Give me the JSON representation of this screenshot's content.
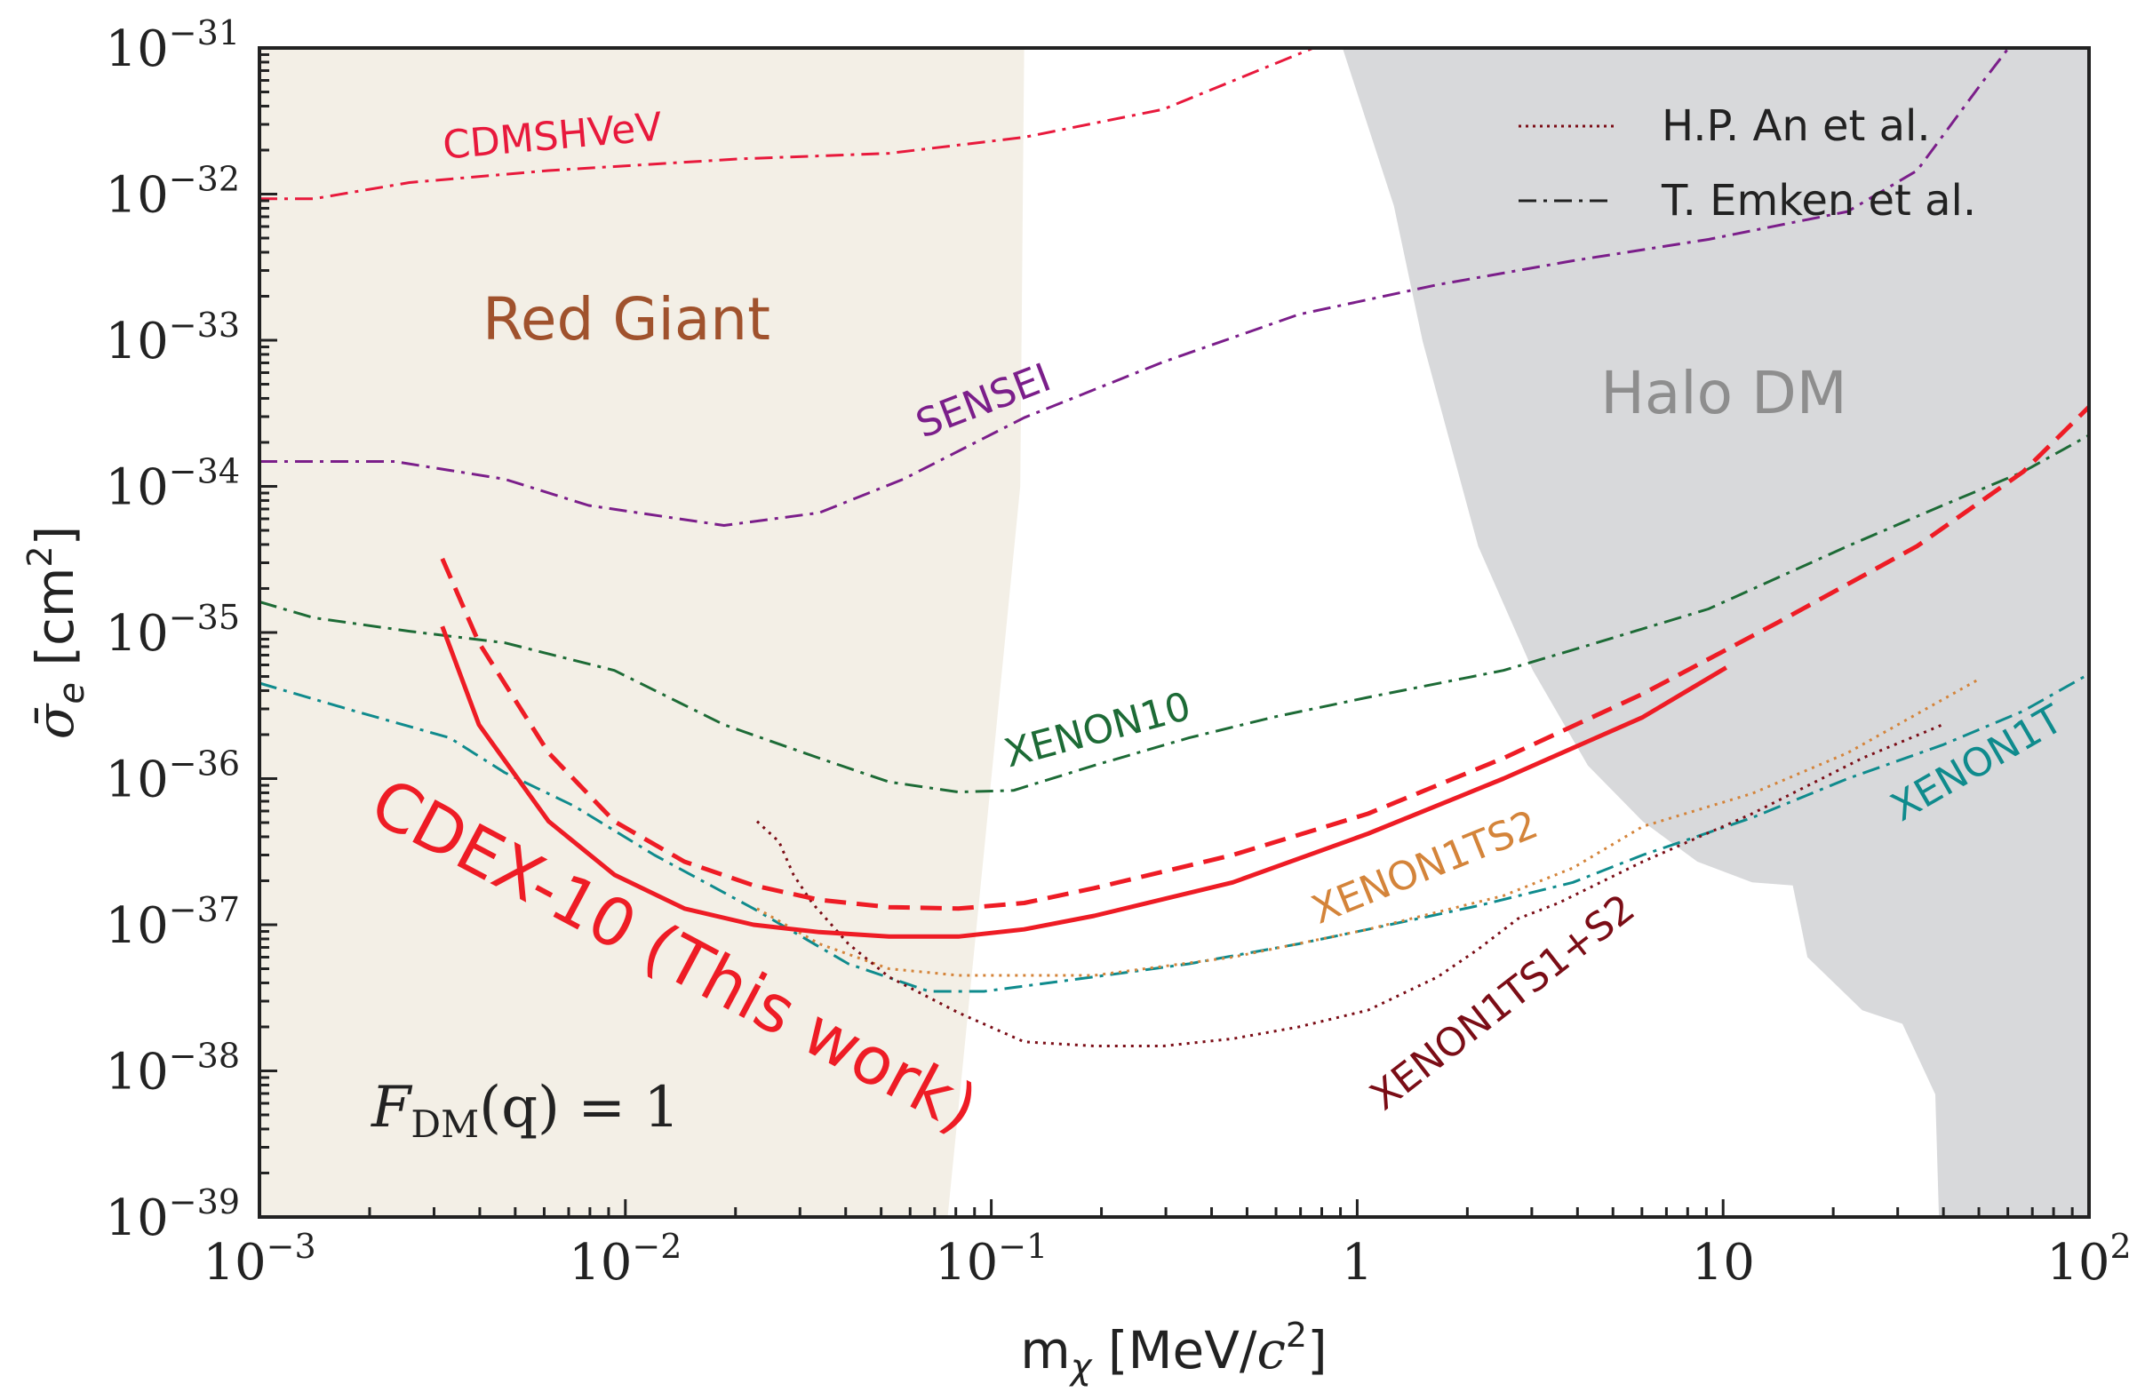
{
  "chart_data": {
    "type": "line",
    "xlabel": "m_χ [MeV/c²]",
    "xlabel_parts": {
      "main": "m",
      "sub": "χ",
      "unit": " [MeV/",
      "c": "c",
      "sup": "2",
      "close": "]"
    },
    "ylabel": "σ̄_e [cm²]",
    "ylabel_parts": {
      "main": "σ̄",
      "sub": "e",
      "unit": " [cm",
      "sup": "2",
      "close": "]"
    },
    "x_scale": "log",
    "y_scale": "log",
    "xlim": [
      0.001,
      100
    ],
    "ylim": [
      1e-39,
      1e-31
    ],
    "grid": false,
    "x_ticks": [
      {
        "value": 0.001,
        "base": "10",
        "exp": "−3"
      },
      {
        "value": 0.01,
        "base": "10",
        "exp": "−2"
      },
      {
        "value": 0.1,
        "base": "10",
        "exp": "−1"
      },
      {
        "value": 1,
        "base": "1",
        "exp": ""
      },
      {
        "value": 10,
        "base": "10",
        "exp": ""
      },
      {
        "value": 100,
        "base": "10",
        "exp": "2"
      }
    ],
    "y_ticks": [
      {
        "value": 1e-31,
        "base": "10",
        "exp": "−31"
      },
      {
        "value": 1e-32,
        "base": "10",
        "exp": "−32"
      },
      {
        "value": 1e-33,
        "base": "10",
        "exp": "−33"
      },
      {
        "value": 1e-34,
        "base": "10",
        "exp": "−34"
      },
      {
        "value": 1e-35,
        "base": "10",
        "exp": "−35"
      },
      {
        "value": 1e-36,
        "base": "10",
        "exp": "−36"
      },
      {
        "value": 1e-37,
        "base": "10",
        "exp": "−37"
      },
      {
        "value": 1e-38,
        "base": "10",
        "exp": "−38"
      },
      {
        "value": 1e-39,
        "base": "10",
        "exp": "−39"
      }
    ],
    "regions": [
      {
        "name": "Red Giant",
        "color": "#f3efe6",
        "label_color": "#a0522d",
        "boundary": [
          [
            0.001,
            1e-31
          ],
          [
            0.123,
            1e-31
          ],
          [
            0.12,
            1e-34
          ],
          [
            0.1,
            1e-36
          ],
          [
            0.076,
            1e-39
          ],
          [
            0.001,
            1e-39
          ]
        ]
      },
      {
        "name": "Halo DM",
        "color": "#d8d9db",
        "label_color": "#8e8e8e",
        "boundary": [
          [
            0.912,
            1e-31
          ],
          [
            1.26,
            8.3e-33
          ],
          [
            1.51,
            9.8e-34
          ],
          [
            2.14,
            3.9e-35
          ],
          [
            3.02,
            5.5e-36
          ],
          [
            4.27,
            1.23e-36
          ],
          [
            6.03,
            5.1e-37
          ],
          [
            8.51,
            2.7e-37
          ],
          [
            12.0,
            1.95e-37
          ],
          [
            15.5,
            1.86e-37
          ],
          [
            17.0,
            6e-38
          ],
          [
            24.0,
            2.6e-38
          ],
          [
            30.9,
            2.1e-38
          ],
          [
            38.0,
            6.9e-39
          ],
          [
            38.9,
            1e-39
          ],
          [
            100,
            1e-39
          ],
          [
            100,
            1e-31
          ]
        ]
      }
    ],
    "series": [
      {
        "name": "CDMSHVeV",
        "color": "#e8193c",
        "style": "dashdot",
        "points": [
          [
            0.001,
            9.3e-33
          ],
          [
            0.00141,
            9.3e-33
          ],
          [
            0.00257,
            1.2e-32
          ],
          [
            0.00617,
            1.45e-32
          ],
          [
            0.0204,
            1.74e-32
          ],
          [
            0.0525,
            1.9e-32
          ],
          [
            0.123,
            2.45e-32
          ],
          [
            0.295,
            3.8e-32
          ],
          [
            0.759,
            1e-31
          ]
        ]
      },
      {
        "name": "SENSEI",
        "color": "#7b1e8a",
        "style": "dashdot",
        "points": [
          [
            0.001,
            1.48e-34
          ],
          [
            0.00234,
            1.48e-34
          ],
          [
            0.00468,
            1.12e-34
          ],
          [
            0.00794,
            7.4e-35
          ],
          [
            0.0186,
            5.4e-35
          ],
          [
            0.0339,
            6.6e-35
          ],
          [
            0.0575,
            1.12e-34
          ],
          [
            0.123,
            2.95e-34
          ],
          [
            0.295,
            7.1e-34
          ],
          [
            0.692,
            1.5e-33
          ],
          [
            1.66,
            2.4e-33
          ],
          [
            3.89,
            3.5e-33
          ],
          [
            9.12,
            4.9e-33
          ],
          [
            21.9,
            7.6e-33
          ],
          [
            33.9,
            1.45e-32
          ],
          [
            51.3,
            5.9e-32
          ],
          [
            60.3,
            1e-31
          ]
        ]
      },
      {
        "name": "XENON10",
        "color": "#1d6b36",
        "style": "dashdot",
        "points": [
          [
            0.001,
            1.62e-35
          ],
          [
            0.00141,
            1.26e-35
          ],
          [
            0.00257,
            1.02e-35
          ],
          [
            0.00468,
            8.5e-36
          ],
          [
            0.00933,
            5.5e-36
          ],
          [
            0.0186,
            2.34e-36
          ],
          [
            0.0339,
            1.38e-36
          ],
          [
            0.0525,
            9.5e-37
          ],
          [
            0.0813,
            8.1e-37
          ],
          [
            0.115,
            8.3e-37
          ],
          [
            0.191,
            1.23e-36
          ],
          [
            0.347,
            1.9e-36
          ],
          [
            0.589,
            2.63e-36
          ],
          [
            1.07,
            3.6e-36
          ],
          [
            2.51,
            5.5e-36
          ],
          [
            3.89,
            7.6e-36
          ],
          [
            9.12,
            1.45e-35
          ],
          [
            21.9,
            3.9e-35
          ],
          [
            39.8,
            7.4e-35
          ],
          [
            66.1,
            1.26e-34
          ],
          [
            100,
            2.24e-34
          ]
        ]
      },
      {
        "name": "XENON1T",
        "color": "#0f8b8d",
        "style": "dashdot",
        "points": [
          [
            0.001,
            4.5e-36
          ],
          [
            0.00182,
            2.9e-36
          ],
          [
            0.00331,
            1.9e-36
          ],
          [
            0.00468,
            1.1e-36
          ],
          [
            0.00724,
            6.5e-37
          ],
          [
            0.012,
            3e-37
          ],
          [
            0.0224,
            1.29e-37
          ],
          [
            0.0407,
            5.4e-38
          ],
          [
            0.0676,
            3.5e-38
          ],
          [
            0.0955,
            3.5e-38
          ],
          [
            0.191,
            4.4e-38
          ],
          [
            0.347,
            5.4e-38
          ],
          [
            0.692,
            7.4e-38
          ],
          [
            1.07,
            9.3e-38
          ],
          [
            2.14,
            1.35e-37
          ],
          [
            3.89,
            1.95e-37
          ],
          [
            6.03,
            3e-37
          ],
          [
            12.0,
            5.4e-37
          ],
          [
            21.9,
            1e-36
          ],
          [
            39.8,
            1.7e-36
          ],
          [
            66.1,
            2.9e-36
          ],
          [
            100,
            5.2e-36
          ]
        ]
      },
      {
        "name": "XENON1TS2",
        "color": "#d4843a",
        "style": "dotted",
        "points": [
          [
            0.0229,
            1.29e-37
          ],
          [
            0.0339,
            7.4e-38
          ],
          [
            0.0525,
            5e-38
          ],
          [
            0.0813,
            4.5e-38
          ],
          [
            0.191,
            4.5e-38
          ],
          [
            0.457,
            6e-38
          ],
          [
            1.07,
            9.3e-38
          ],
          [
            2.51,
            1.58e-37
          ],
          [
            3.89,
            2.45e-37
          ],
          [
            6.03,
            4.7e-37
          ],
          [
            12.0,
            7.9e-37
          ],
          [
            21.9,
            1.5e-36
          ],
          [
            50.1,
            4.8e-36
          ]
        ]
      },
      {
        "name": "XENON1TS1+S2",
        "color": "#7b0d16",
        "style": "dotted",
        "points": [
          [
            0.0229,
            5.1e-37
          ],
          [
            0.0263,
            3.7e-37
          ],
          [
            0.0288,
            2.2e-37
          ],
          [
            0.0324,
            1.41e-37
          ],
          [
            0.0407,
            7.4e-38
          ],
          [
            0.0525,
            4.4e-38
          ],
          [
            0.0813,
            2.5e-38
          ],
          [
            0.123,
            1.58e-38
          ],
          [
            0.191,
            1.48e-38
          ],
          [
            0.295,
            1.48e-38
          ],
          [
            0.457,
            1.66e-38
          ],
          [
            0.692,
            2e-38
          ],
          [
            1.07,
            2.6e-38
          ],
          [
            1.66,
            4.4e-38
          ],
          [
            2.14,
            6.8e-38
          ],
          [
            2.75,
            1.1e-37
          ],
          [
            3.55,
            1.41e-37
          ],
          [
            6.03,
            2.7e-37
          ],
          [
            12.0,
            5.75e-37
          ],
          [
            24.0,
            1.38e-36
          ],
          [
            39.8,
            2.34e-36
          ]
        ]
      },
      {
        "name": "CDEX-10 (This work)",
        "color": "#ee1c25",
        "style": "solid",
        "points": [
          [
            0.00316,
            1.1e-35
          ],
          [
            0.00398,
            2.34e-36
          ],
          [
            0.00617,
            5.1e-37
          ],
          [
            0.00933,
            2.2e-37
          ],
          [
            0.0145,
            1.29e-37
          ],
          [
            0.0224,
            1e-37
          ],
          [
            0.0339,
            8.9e-38
          ],
          [
            0.0525,
            8.3e-38
          ],
          [
            0.0813,
            8.3e-38
          ],
          [
            0.123,
            9.3e-38
          ],
          [
            0.191,
            1.15e-37
          ],
          [
            0.457,
            1.95e-37
          ],
          [
            1.07,
            4.2e-37
          ],
          [
            2.51,
            1e-36
          ],
          [
            6.03,
            2.63e-36
          ],
          [
            10.2,
            5.75e-36
          ]
        ]
      },
      {
        "name": "CDEX-10 (This work)",
        "color": "#ee1c25",
        "style": "dashed",
        "points": [
          [
            0.00316,
            3.2e-35
          ],
          [
            0.00398,
            8.5e-36
          ],
          [
            0.00617,
            1.5e-36
          ],
          [
            0.00933,
            5.1e-37
          ],
          [
            0.0145,
            2.7e-37
          ],
          [
            0.0224,
            1.86e-37
          ],
          [
            0.0339,
            1.48e-37
          ],
          [
            0.0525,
            1.32e-37
          ],
          [
            0.0813,
            1.29e-37
          ],
          [
            0.123,
            1.41e-37
          ],
          [
            0.191,
            1.78e-37
          ],
          [
            0.457,
            3e-37
          ],
          [
            1.07,
            5.75e-37
          ],
          [
            2.51,
            1.38e-36
          ],
          [
            6.03,
            3.8e-36
          ],
          [
            14.1,
            1.17e-35
          ],
          [
            33.9,
            3.9e-35
          ],
          [
            66.1,
            1.26e-34
          ],
          [
            100,
            3.5e-34
          ]
        ]
      }
    ],
    "legend": {
      "placement": "top-right",
      "entries": [
        {
          "label": "H.P. An et al.",
          "style": "dotted"
        },
        {
          "label": "T. Emken et al.",
          "style": "dashdot"
        }
      ]
    },
    "annotations": {
      "red_giant": "Red Giant",
      "halo_dm": "Halo DM",
      "cdmshvev": "CDMSHVeV",
      "sensei": "SENSEI",
      "xenon10": "XENON10",
      "xenon1t": "XENON1T",
      "xenon1ts2": "XENON1TS2",
      "xenon1ts1s2": "XENON1TS1+S2",
      "cdex": "CDEX-10 (This work)",
      "form_factor": {
        "F": "F",
        "sub": "DM",
        "rest": "(q) = 1"
      }
    }
  }
}
